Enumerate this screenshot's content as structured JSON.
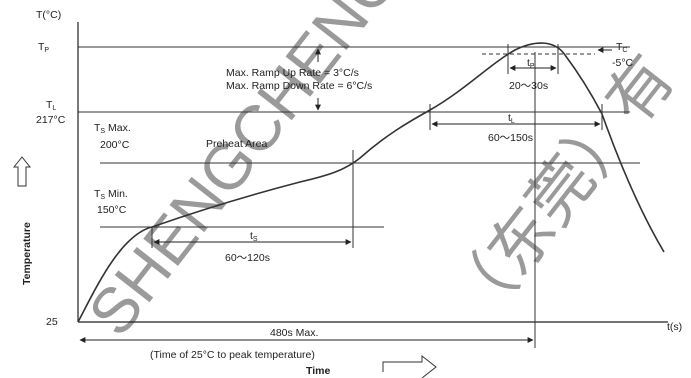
{
  "axes": {
    "y_title": "T(°C)",
    "x_unit": "t(s)",
    "y_axis_label": "Temperature",
    "x_axis_label": "Time",
    "origin_label": "25"
  },
  "levels": {
    "tp": {
      "main": "T",
      "sub": "P"
    },
    "tl": {
      "main": "T",
      "sub": "L",
      "value": "217°C"
    },
    "ts_max": {
      "main": "T",
      "sub": "S",
      "suffix": " Max.",
      "value": "200°C"
    },
    "ts_min": {
      "main": "T",
      "sub": "S",
      "suffix": " Min.",
      "value": "150°C"
    },
    "tc": {
      "main": "T",
      "sub": "C",
      "note": "-5°C"
    }
  },
  "annotations": {
    "ramp_up": "Max. Ramp Up Rate = 3°C/s",
    "ramp_down": "Max. Ramp Down Rate = 6°C/s",
    "preheat": "Preheat Area"
  },
  "intervals": {
    "tp": {
      "main": "t",
      "sub": "P",
      "value": "20～30s"
    },
    "tl": {
      "main": "t",
      "sub": "L",
      "value": "60～150s"
    },
    "ts": {
      "main": "t",
      "sub": "S",
      "value": "60～120s"
    },
    "total": {
      "line1": "480s Max.",
      "line2": "(Time of 25°C  to peak temperature)"
    }
  },
  "watermark": [
    "SHENGCHENG ELEC",
    "（东莞）有"
  ]
}
